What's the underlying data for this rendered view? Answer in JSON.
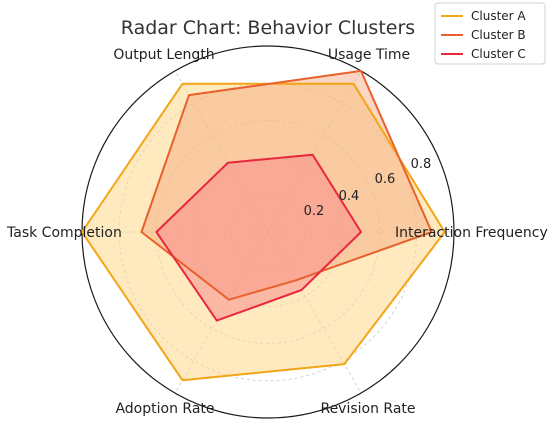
{
  "chart_data": {
    "type": "radar",
    "title": "Radar Chart: Behavior Clusters",
    "axes": [
      "Interaction Frequency",
      "Usage Time",
      "Output Length",
      "Task Completion",
      "Adoption Rate",
      "Revision Rate"
    ],
    "rlim": [
      0,
      1
    ],
    "rticks": [
      0.2,
      0.4,
      0.6,
      0.8
    ],
    "rtick_labels": [
      "0.2",
      "0.4",
      "0.6",
      "0.8"
    ],
    "grid": true,
    "legend_position": "top-right",
    "series": [
      {
        "name": "Cluster A",
        "values": [
          0.95,
          0.92,
          0.92,
          1.0,
          0.92,
          0.82
        ],
        "line_color": "#f2a516",
        "fill_color": "#ffd98c",
        "fill_opacity": 0.55
      },
      {
        "name": "Cluster B",
        "values": [
          0.88,
          1.0,
          0.85,
          0.68,
          0.42,
          0.3
        ],
        "line_color": "#e8612c",
        "fill_color": "#f5a37a",
        "fill_opacity": 0.45
      },
      {
        "name": "Cluster C",
        "values": [
          0.5,
          0.48,
          0.43,
          0.6,
          0.55,
          0.36
        ],
        "line_color": "#e8283c",
        "fill_color": "#f7878a",
        "fill_opacity": 0.5
      }
    ]
  }
}
